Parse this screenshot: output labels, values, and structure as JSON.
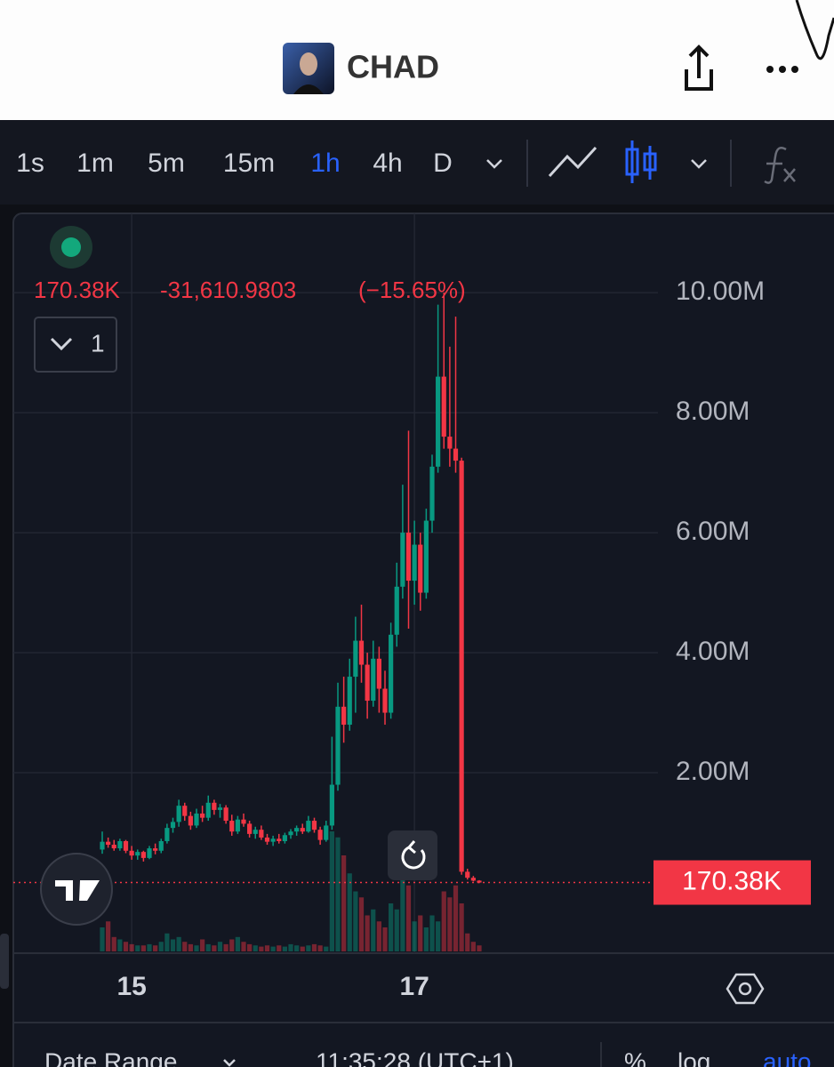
{
  "header": {
    "title": "CHAD"
  },
  "toolbar": {
    "intervals": [
      "1s",
      "1m",
      "5m",
      "15m",
      "1h",
      "4h",
      "D"
    ],
    "active_interval": "1h"
  },
  "chart_data": {
    "type": "candlestick",
    "legend": {
      "price": "170.38K",
      "change": "-31,610.9803",
      "percent": "(−15.65%)"
    },
    "indicators": 1,
    "up_color": "#089981",
    "down_color": "#f23645",
    "grid": true,
    "categories": [
      null,
      null,
      null,
      null,
      null,
      "15",
      null,
      null,
      null,
      null,
      null,
      null,
      null,
      null,
      null,
      null,
      null,
      null,
      null,
      null,
      null,
      null,
      null,
      null,
      null,
      null,
      null,
      null,
      null,
      null,
      null,
      null,
      null,
      null,
      null,
      null,
      null,
      null,
      null,
      null,
      null,
      null,
      null,
      null,
      null,
      null,
      null,
      null,
      null,
      null,
      null,
      null,
      null,
      "17",
      null,
      null,
      null,
      null,
      null,
      null,
      null,
      null,
      null,
      null,
      null
    ],
    "open": [
      0.72,
      0.85,
      0.8,
      0.74,
      0.86,
      0.7,
      0.62,
      0.68,
      0.58,
      0.74,
      0.7,
      0.86,
      1.08,
      1.18,
      1.45,
      1.28,
      1.12,
      1.32,
      1.25,
      1.5,
      1.38,
      1.42,
      1.2,
      1.02,
      1.22,
      1.15,
      0.98,
      1.05,
      0.92,
      0.85,
      0.9,
      0.86,
      0.96,
      1.02,
      1.08,
      1.02,
      1.2,
      1.05,
      0.88,
      1.12,
      1.8,
      3.1,
      2.8,
      3.6,
      4.2,
      3.8,
      3.2,
      3.9,
      3.4,
      3.0,
      4.3,
      5.1,
      6.0,
      5.2,
      5.8,
      5.0,
      6.2,
      7.1,
      8.6,
      7.6,
      7.4,
      7.2,
      0.35,
      0.25,
      0.20199
    ],
    "high": [
      1.02,
      0.92,
      0.88,
      0.9,
      0.88,
      0.78,
      0.72,
      0.7,
      0.78,
      0.82,
      0.9,
      1.15,
      1.25,
      1.55,
      1.5,
      1.35,
      1.4,
      1.45,
      1.62,
      1.55,
      1.48,
      1.46,
      1.3,
      1.28,
      1.32,
      1.2,
      1.1,
      1.12,
      0.98,
      0.95,
      0.98,
      1.0,
      1.06,
      1.12,
      1.15,
      1.28,
      1.25,
      1.1,
      1.2,
      2.6,
      3.5,
      3.6,
      3.9,
      4.6,
      4.8,
      4.0,
      4.2,
      4.1,
      3.7,
      4.5,
      5.5,
      6.8,
      7.7,
      6.2,
      6.0,
      6.4,
      7.3,
      9.8,
      10.0,
      9.1,
      9.6,
      7.25,
      0.4,
      0.28,
      0.21
    ],
    "low": [
      0.65,
      0.75,
      0.7,
      0.7,
      0.66,
      0.55,
      0.55,
      0.52,
      0.56,
      0.64,
      0.66,
      0.82,
      1.0,
      1.1,
      1.2,
      1.05,
      1.08,
      1.18,
      1.2,
      1.3,
      1.25,
      1.15,
      0.95,
      0.98,
      1.1,
      0.92,
      0.9,
      0.88,
      0.8,
      0.78,
      0.82,
      0.82,
      0.9,
      0.95,
      0.98,
      1.0,
      1.0,
      0.8,
      0.85,
      1.05,
      1.7,
      2.5,
      2.7,
      3.0,
      3.5,
      2.9,
      3.1,
      3.0,
      2.8,
      2.9,
      4.1,
      4.9,
      4.4,
      4.8,
      4.7,
      4.9,
      6.0,
      7.0,
      7.4,
      7.1,
      7.0,
      0.3,
      0.22,
      0.19,
      0.16
    ],
    "close": [
      0.85,
      0.8,
      0.74,
      0.86,
      0.7,
      0.62,
      0.68,
      0.58,
      0.74,
      0.7,
      0.86,
      1.08,
      1.18,
      1.45,
      1.28,
      1.12,
      1.32,
      1.25,
      1.5,
      1.38,
      1.42,
      1.2,
      1.02,
      1.22,
      1.15,
      0.98,
      1.05,
      0.92,
      0.85,
      0.9,
      0.86,
      0.96,
      1.02,
      1.08,
      1.02,
      1.2,
      1.05,
      0.88,
      1.12,
      1.8,
      3.1,
      2.8,
      3.6,
      4.2,
      3.8,
      3.2,
      3.9,
      3.4,
      3.0,
      4.3,
      5.1,
      6.0,
      5.2,
      5.8,
      5.0,
      6.2,
      7.1,
      8.6,
      7.6,
      7.4,
      7.2,
      0.35,
      0.25,
      0.20199,
      0.17038
    ],
    "volume": [
      20,
      25,
      12,
      10,
      8,
      6,
      5,
      5,
      6,
      5,
      8,
      15,
      10,
      12,
      8,
      6,
      5,
      10,
      6,
      5,
      8,
      6,
      10,
      12,
      8,
      6,
      5,
      4,
      5,
      4,
      5,
      4,
      6,
      5,
      4,
      5,
      6,
      5,
      4,
      100,
      95,
      80,
      65,
      50,
      45,
      30,
      35,
      25,
      20,
      40,
      35,
      60,
      55,
      25,
      30,
      20,
      30,
      25,
      50,
      45,
      55,
      40,
      15,
      8,
      5
    ],
    "ylim": [
      -1.007,
      11.32
    ],
    "yticks": [
      {
        "value": 2,
        "label": "2.00M"
      },
      {
        "value": 4,
        "label": "4.00M"
      },
      {
        "value": 6,
        "label": "6.00M"
      },
      {
        "value": 8,
        "label": "8.00M"
      },
      {
        "value": 10,
        "label": "10.00M"
      }
    ],
    "last_price": {
      "value": 0.17038,
      "label": "170.38K"
    }
  },
  "footer": {
    "date_range": "Date Range",
    "time": "11:35:28 (UTC+1)",
    "percent": "%",
    "log": "log",
    "auto": "auto"
  }
}
